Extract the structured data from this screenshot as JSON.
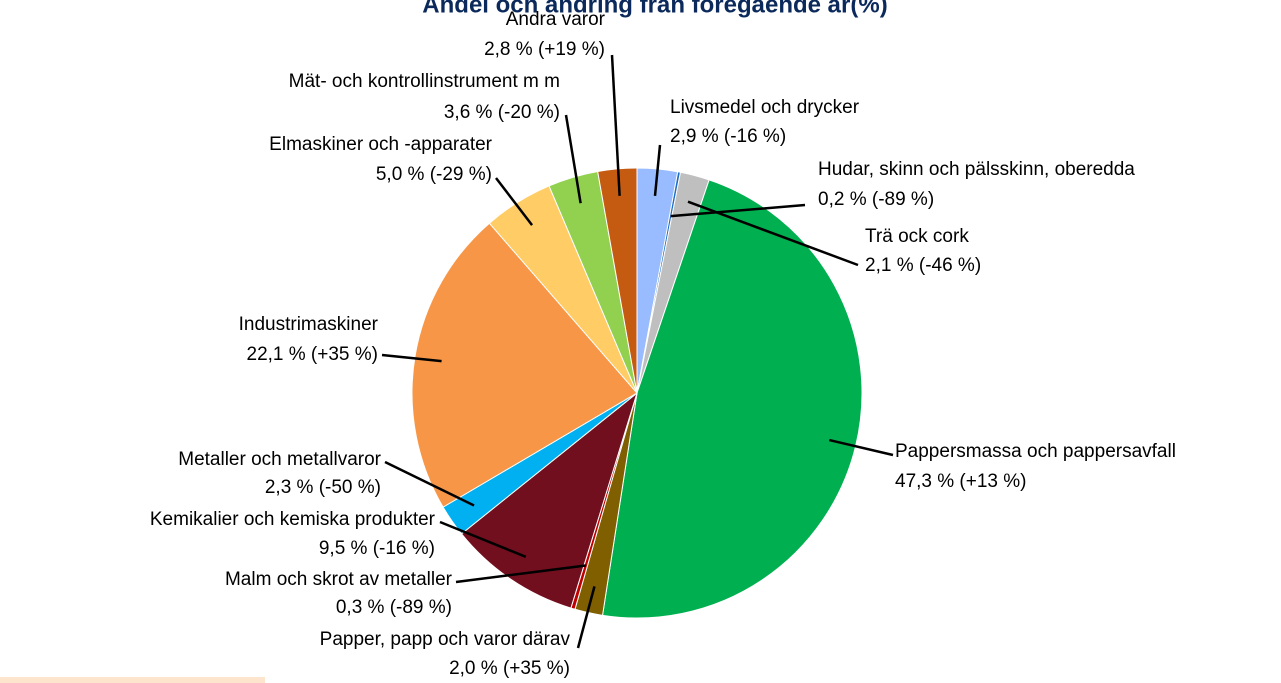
{
  "chart_data": {
    "type": "pie",
    "title": "Andel och ändring från föregående år(%)",
    "categories": [
      "Livsmedel och drycker",
      "Hudar, skinn och pälsskinn, oberedda",
      "Trä ock cork",
      "Pappersmassa och pappersavfall",
      "Papper, papp och varor därav",
      "Malm och skrot av metaller",
      "Kemikalier och kemiska produkter",
      "Metaller och metallvaror",
      "Industrimaskiner",
      "Elmaskiner och -apparater",
      "Mät- och kontrollinstrument m m",
      "Andra varor"
    ],
    "values": [
      2.9,
      0.2,
      2.1,
      47.3,
      2.0,
      0.3,
      9.5,
      2.3,
      22.1,
      5.0,
      3.6,
      2.8
    ],
    "value_labels": [
      "2,9 % (-16 %)",
      "0,2 % (-89 %)",
      "2,1 % (-46 %)",
      "47,3 % (+13 %)",
      "2,0 % (+35 %)",
      "0,3 % (-89 %)",
      "9,5 % (-16 %)",
      "2,3 % (-50 %)",
      "22,1 % (+35 %)",
      "5,0 % (-29 %)",
      "3,6 % (-20 %)",
      "2,8 % (+19 %)"
    ],
    "colors": [
      "#99bbff",
      "#1f6fbf",
      "#bfbfbf",
      "#00b050",
      "#7f5f00",
      "#c00000",
      "#720f1e",
      "#00b0f0",
      "#f79646",
      "#ffcc66",
      "#92d050",
      "#c55a11"
    ]
  }
}
